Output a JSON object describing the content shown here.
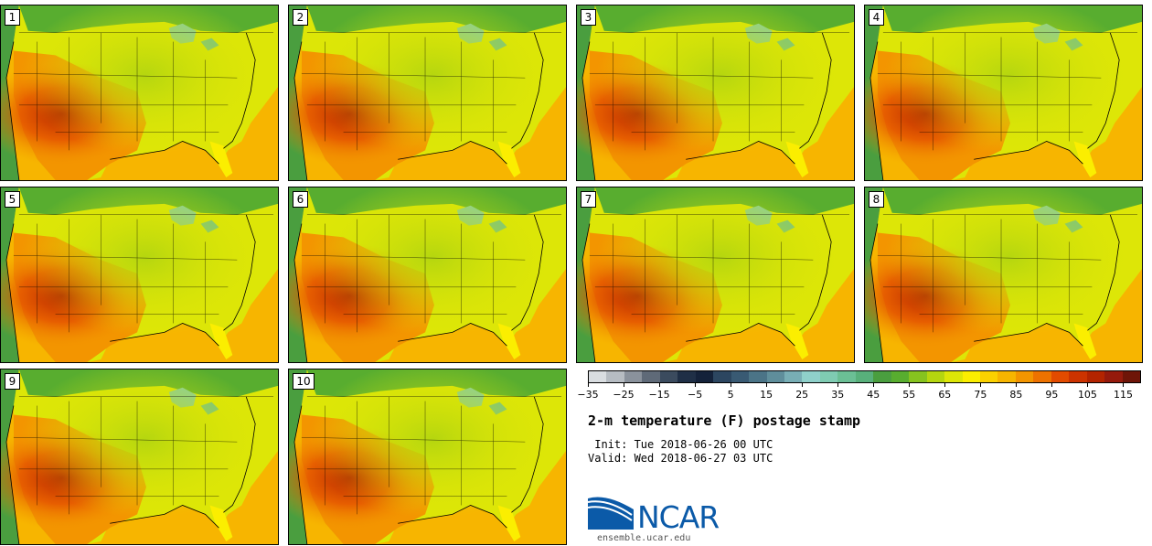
{
  "members": [
    "1",
    "2",
    "3",
    "4",
    "5",
    "6",
    "7",
    "8",
    "9",
    "10"
  ],
  "product": {
    "title": "2-m temperature (F) postage stamp",
    "init": " Init: Tue 2018-06-26 00 UTC",
    "valid": "Valid: Wed 2018-06-27 03 UTC"
  },
  "colorbar": {
    "tick_labels": [
      "−35",
      "−25",
      "−15",
      "−5",
      "5",
      "15",
      "25",
      "35",
      "45",
      "55",
      "65",
      "75",
      "85",
      "95",
      "105",
      "115"
    ],
    "colors": [
      "#d9dde0",
      "#b6bcc2",
      "#8a929c",
      "#5f6a78",
      "#3b4b5e",
      "#1f2f46",
      "#14223a",
      "#2c4660",
      "#395a73",
      "#4b7487",
      "#5f8e9b",
      "#78aeb5",
      "#8fd0ca",
      "#7fcbb2",
      "#6bbf95",
      "#58b07b",
      "#4a9e3f",
      "#58ad2f",
      "#86c31f",
      "#b5d60f",
      "#dde607",
      "#fbee00",
      "#fbd100",
      "#f7b500",
      "#f39500",
      "#ed7200",
      "#e24b00",
      "#cc3300",
      "#b32400",
      "#951a0c",
      "#6e1508"
    ]
  },
  "logo": {
    "text": "NCAR",
    "url": "ensemble.ucar.edu"
  }
}
